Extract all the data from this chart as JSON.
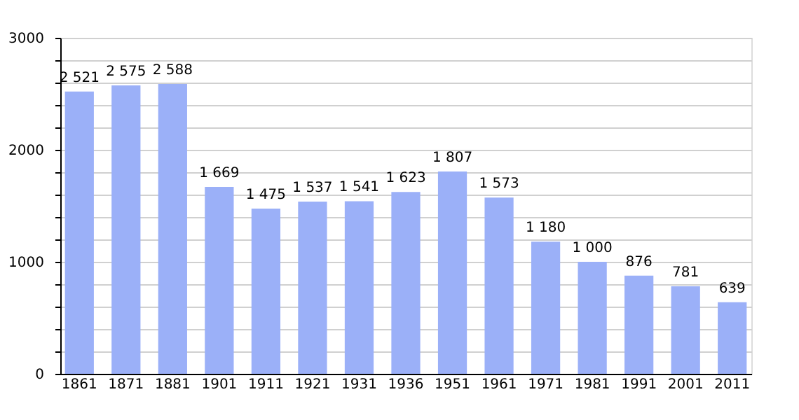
{
  "chart_data": {
    "type": "bar",
    "categories": [
      "1861",
      "1871",
      "1881",
      "1901",
      "1911",
      "1921",
      "1931",
      "1936",
      "1951",
      "1961",
      "1971",
      "1981",
      "1991",
      "2001",
      "2011"
    ],
    "values": [
      2521,
      2575,
      2588,
      1669,
      1475,
      1537,
      1541,
      1623,
      1807,
      1573,
      1180,
      1000,
      876,
      781,
      639
    ],
    "value_labels": [
      "2 521",
      "2 575",
      "2 588",
      "1 669",
      "1 475",
      "1 537",
      "1 541",
      "1 623",
      "1 807",
      "1 573",
      "1 180",
      "1 000",
      "876",
      "781",
      "639"
    ],
    "color": "#9bb0f8",
    "ylim": [
      0,
      3000
    ],
    "yticks": [
      0,
      {
        "value": 200,
        "label": null
      },
      {
        "value": 400,
        "label": null
      },
      {
        "value": 600,
        "label": null
      },
      {
        "value": 800,
        "label": null
      },
      1000,
      {
        "value": 1200,
        "label": null
      },
      {
        "value": 1400,
        "label": null
      },
      {
        "value": 1600,
        "label": null
      },
      {
        "value": 1800,
        "label": null
      },
      2000,
      {
        "value": 2200,
        "label": null
      },
      {
        "value": 2400,
        "label": null
      },
      {
        "value": 2600,
        "label": null
      },
      {
        "value": 2800,
        "label": null
      },
      3000
    ],
    "grid": "y"
  }
}
